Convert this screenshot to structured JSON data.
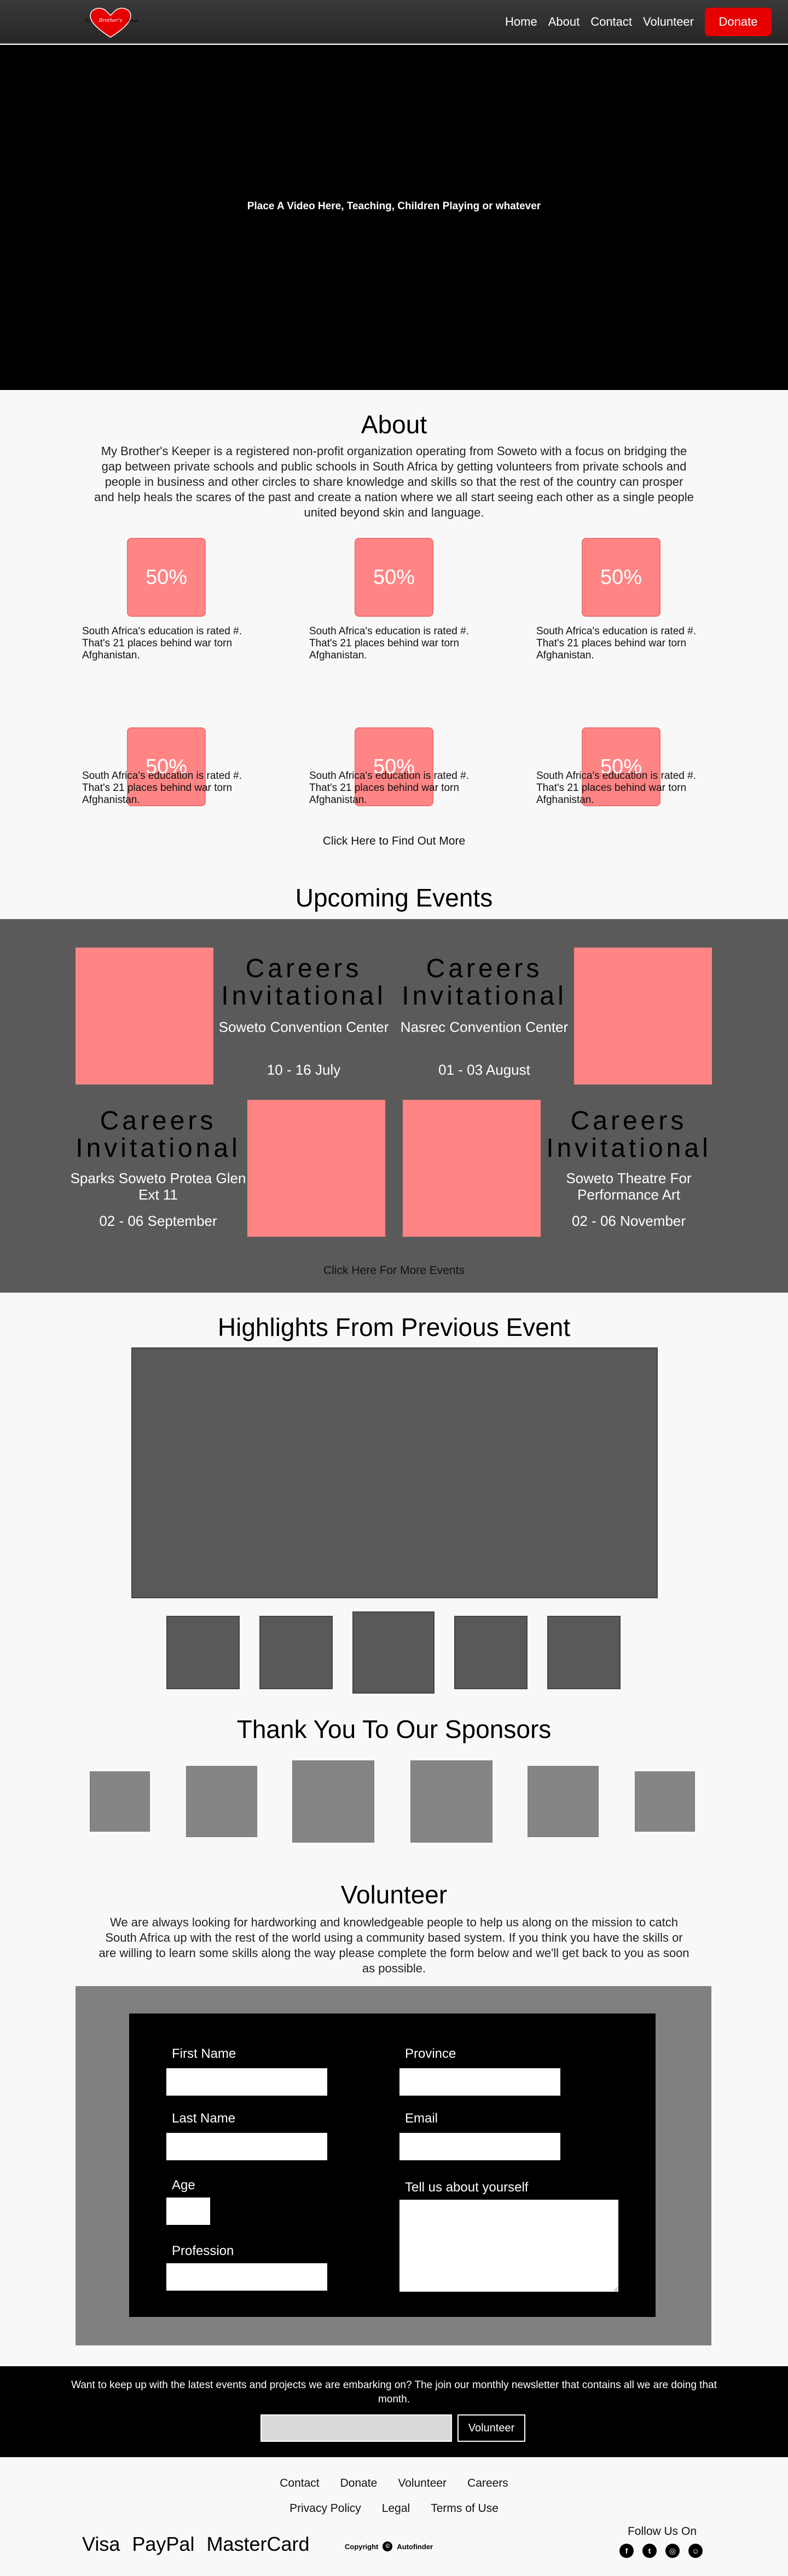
{
  "nav": {
    "logo_text": "Brother's Keeper",
    "links": [
      "Home",
      "About",
      "Contact",
      "Volunteer"
    ],
    "donate_label": "Donate"
  },
  "hero": {
    "placeholder_text": "Place A Video Here, Teaching, Children Playing or whatever"
  },
  "about": {
    "title": "About",
    "text": "My Brother's Keeper is a registered non-profit organization operating from Soweto with a focus on bridging the gap between private schools and public schools in South Africa by getting volunteers from private schools and people in business and other circles to share knowledge and skills so that the rest of the country can prosper and help heals the scares of the past and create a nation where we all start seeing each other as a single people united beyond skin and language.",
    "stats": [
      {
        "value": "50%",
        "text": "South Africa's education is rated #. That's 21 places behind war torn Afghanistan."
      },
      {
        "value": "50%",
        "text": "South Africa's education is rated #. That's 21 places behind war torn Afghanistan."
      },
      {
        "value": "50%",
        "text": "South Africa's education is rated #. That's 21 places behind war torn Afghanistan."
      },
      {
        "value": "50%",
        "text": "South Africa's education is rated #. That's 21 places behind war torn Afghanistan."
      },
      {
        "value": "50%",
        "text": "South Africa's education is rated #. That's 21 places behind war torn Afghanistan."
      },
      {
        "value": "50%",
        "text": "South Africa's education is rated #. That's 21 places behind war torn Afghanistan."
      }
    ],
    "find_more": "Click Here to Find Out More"
  },
  "events": {
    "title": "Upcoming Events",
    "items": [
      {
        "title": "Careers Invitational",
        "place": "Soweto Convention Center",
        "date": "10 - 16 July"
      },
      {
        "title": "Careers Invitational",
        "place": "Nasrec Convention Center",
        "date": "01 - 03 August"
      },
      {
        "title": "Careers Invitational",
        "place": "Sparks Soweto Protea Glen Ext 11",
        "date": "02 - 06 September"
      },
      {
        "title": "Careers Invitational",
        "place": "Soweto Theatre For Performance Art",
        "date": "02 - 06 November"
      }
    ],
    "more": "Click Here For More Events"
  },
  "highlights": {
    "title": "Highlights From Previous Event"
  },
  "sponsors": {
    "title": "Thank You To Our Sponsors"
  },
  "volunteer": {
    "title": "Volunteer",
    "text": "We are always looking for hardworking and knowledgeable people to help us along on the mission to catch South Africa up with the rest of the world using a community based system. If you think you have the skills or are willing to learn some skills along the way please complete the form below and we'll get back to you as soon as possible.",
    "labels": {
      "first_name": "First Name",
      "last_name": "Last Name",
      "age": "Age",
      "profession": "Profession",
      "province": "Province",
      "email": "Email",
      "about": "Tell us about yourself"
    }
  },
  "newsletter": {
    "text": "Want to keep up with the latest events and projects we are embarking on? The join our monthly newsletter that contains all we are doing that month.",
    "button": "Volunteer"
  },
  "footer": {
    "links_row1": [
      "Contact",
      "Donate",
      "Volunteer",
      "Careers"
    ],
    "links_row2": [
      "Privacy Policy",
      "Legal",
      "Terms of Use"
    ],
    "payments": [
      "Visa",
      "PayPal",
      "MasterCard"
    ],
    "copyright": "Copyright",
    "brand": "Autofinder",
    "follow": "Follow Us On",
    "socials": [
      "facebook-icon",
      "twitter-icon",
      "instagram-icon",
      "github-icon"
    ]
  }
}
